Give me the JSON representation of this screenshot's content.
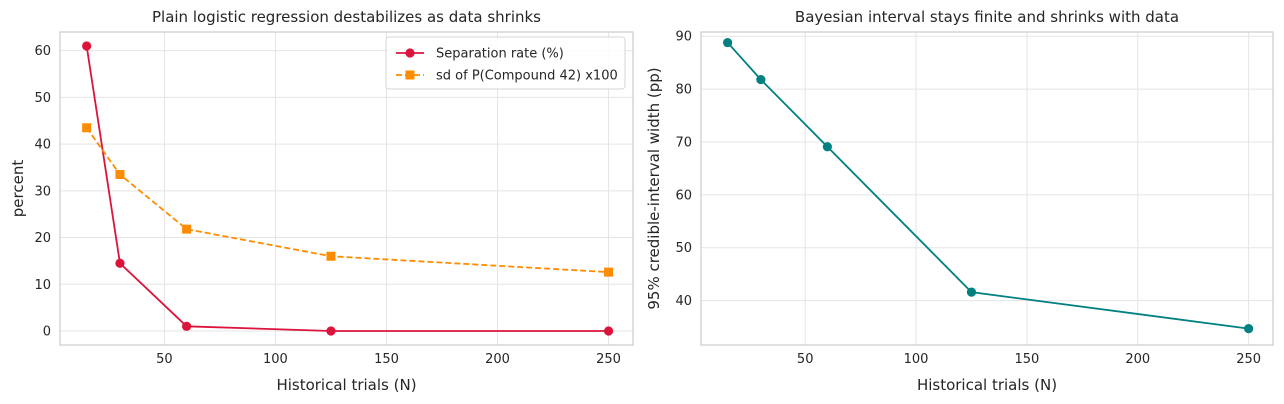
{
  "chart_data": [
    {
      "type": "line",
      "title": "Plain logistic regression destabilizes as data shrinks",
      "xlabel": "Historical trials (N)",
      "ylabel": "percent",
      "xlim": [
        3,
        261
      ],
      "ylim": [
        -3,
        64
      ],
      "xticks": [
        50,
        100,
        150,
        200,
        250
      ],
      "yticks": [
        0,
        10,
        20,
        30,
        40,
        50,
        60
      ],
      "grid": true,
      "legend": "top-right",
      "x": [
        15,
        30,
        60,
        125,
        250
      ],
      "series": [
        {
          "name": "Separation rate (%)",
          "values": [
            61.0,
            14.5,
            1.0,
            0.0,
            0.0
          ],
          "color": "#dc143c",
          "marker": "circle",
          "dash": "solid"
        },
        {
          "name": "sd of P(Compound 42) x100",
          "values": [
            43.5,
            33.5,
            21.8,
            16.0,
            12.6
          ],
          "color": "#ff8c00",
          "marker": "square",
          "dash": "dashed"
        }
      ]
    },
    {
      "type": "line",
      "title": "Bayesian interval stays finite and shrinks with data",
      "xlabel": "Historical trials (N)",
      "ylabel": "95% credible-interval width (pp)",
      "xlim": [
        3,
        261
      ],
      "ylim": [
        31.6,
        90.8
      ],
      "xticks": [
        50,
        100,
        150,
        200,
        250
      ],
      "yticks": [
        40,
        50,
        60,
        70,
        80,
        90
      ],
      "grid": true,
      "x": [
        15,
        30,
        60,
        125,
        250
      ],
      "series": [
        {
          "values": [
            88.8,
            81.8,
            69.1,
            41.6,
            34.7
          ],
          "color": "#008080",
          "marker": "circle",
          "dash": "solid"
        }
      ]
    }
  ]
}
